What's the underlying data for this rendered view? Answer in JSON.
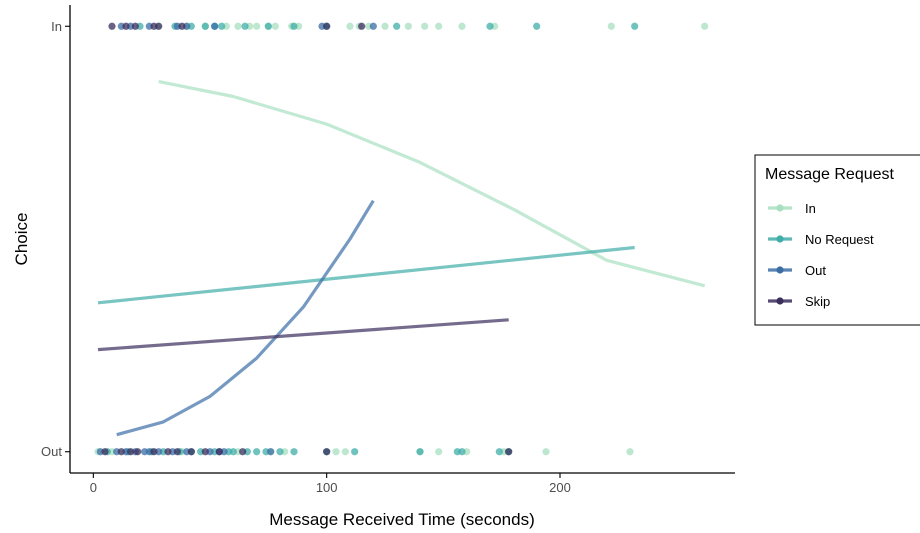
{
  "chart_data": {
    "type": "scatter",
    "xlabel": "Message Received Time (seconds)",
    "ylabel": "Choice",
    "xlim": [
      -10,
      275
    ],
    "ylim": [
      -0.05,
      1.05
    ],
    "x_ticks": [
      0,
      100,
      200
    ],
    "y_categories": [
      "Out",
      "In"
    ],
    "grid": false,
    "legend": {
      "title": "Message Request",
      "position": "right",
      "entries": [
        "In",
        "No Request",
        "Out",
        "Skip"
      ]
    },
    "series": [
      {
        "name": "In",
        "color": "#a8dfc0",
        "points_in": [
          28,
          40,
          48,
          57,
          62,
          67,
          70,
          75,
          78,
          85,
          88,
          110,
          114,
          118,
          125,
          135,
          142,
          148,
          158,
          172,
          222,
          262
        ],
        "points_out": [
          2,
          8,
          38,
          62,
          76,
          82,
          104,
          108,
          140,
          148,
          160,
          176,
          194,
          230
        ],
        "fit": {
          "x": [
            28,
            60,
            100,
            140,
            180,
            220,
            262
          ],
          "y": [
            0.87,
            0.835,
            0.77,
            0.68,
            0.57,
            0.45,
            0.39
          ]
        }
      },
      {
        "name": "No Request",
        "color": "#3fada8",
        "points_in": [
          20,
          35,
          42,
          48,
          52,
          55,
          65,
          75,
          86,
          100,
          130,
          170,
          190,
          232
        ],
        "points_out": [
          6,
          15,
          25,
          30,
          37,
          42,
          46,
          52,
          58,
          60,
          66,
          70,
          74,
          80,
          86,
          100,
          112,
          140,
          156,
          158,
          174,
          178
        ],
        "fit": {
          "x": [
            2,
            232
          ],
          "y": [
            0.35,
            0.48
          ]
        }
      },
      {
        "name": "Out",
        "color": "#3a6ea5",
        "points_in": [
          12,
          16,
          24,
          36,
          40,
          52,
          98,
          120
        ],
        "points_out": [
          3,
          10,
          14,
          18,
          22,
          24,
          28,
          34,
          40,
          50,
          54,
          56,
          76
        ],
        "fit": {
          "x": [
            10,
            30,
            50,
            70,
            90,
            110,
            120
          ],
          "y": [
            0.04,
            0.07,
            0.13,
            0.22,
            0.34,
            0.5,
            0.59
          ]
        }
      },
      {
        "name": "Skip",
        "color": "#3a2e5c",
        "points_in": [
          8,
          14,
          18,
          26,
          28,
          38,
          100,
          115
        ],
        "points_out": [
          5,
          12,
          16,
          19,
          26,
          32,
          36,
          42,
          48,
          54,
          64,
          100,
          178
        ],
        "fit": {
          "x": [
            2,
            178
          ],
          "y": [
            0.24,
            0.31
          ]
        }
      }
    ]
  }
}
